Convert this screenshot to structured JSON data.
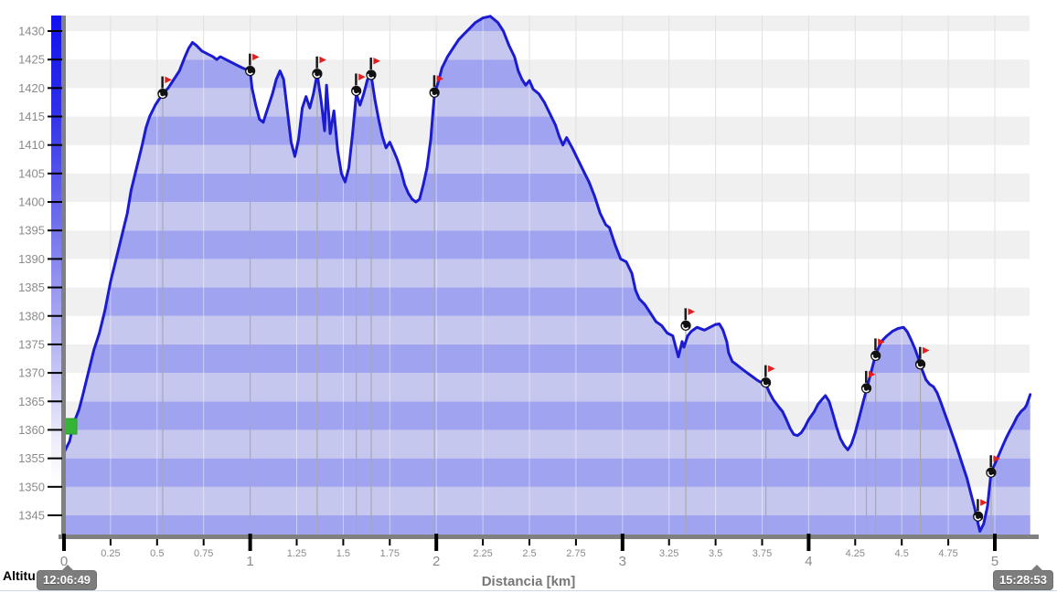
{
  "footer": {
    "y_axis_title": "Altitu",
    "x_axis_title": "Distancia [km]",
    "start_time": "12:06:49",
    "end_time": "15:28:53"
  },
  "axes": {
    "y_ticks": [
      "1430",
      "1425",
      "1420",
      "1415",
      "1410",
      "1405",
      "1400",
      "1395",
      "1390",
      "1385",
      "1380",
      "1375",
      "1370",
      "1365",
      "1360",
      "1355",
      "1350",
      "1345"
    ],
    "x_major_ticks": [
      "0",
      "1",
      "2",
      "3",
      "4",
      "5"
    ],
    "x_minor_ticks": [
      "0.25",
      "0.5",
      "0.75",
      "1.25",
      "1.5",
      "1.75",
      "2.25",
      "2.5",
      "2.75",
      "3.25",
      "3.5",
      "3.75",
      "4.25",
      "4.5",
      "4.75"
    ]
  },
  "colors": {
    "line": "#1b1bd1",
    "fill_light": "#c6c7ef",
    "fill_dark": "#a0a3f0",
    "bg_band_light": "#ffffff",
    "bg_band_dark": "#f0f0f0",
    "gridline": "#e0e0e0",
    "axis_bar": "#808080",
    "tick_label": "#8a8a8a",
    "tick_mark": "#000000",
    "droplink": "#a8a8a8",
    "badge_bg": "#7d7d7d",
    "flag_red": "#e01f1f",
    "flag_pole": "#1a1a1a",
    "marker_black": "#111111",
    "start_green": "#35b535",
    "gradient_top": "#1111ee"
  },
  "chart_data": {
    "type": "area",
    "title": "",
    "xlabel": "Distancia [km]",
    "ylabel": "Altitu",
    "x_range": [
      0,
      5.2
    ],
    "y_range": [
      1341.6,
      1432.7
    ],
    "grid": true,
    "y_tick_step": 5,
    "x_minor_step": 0.25,
    "start_time": "12:06:49",
    "end_time": "15:28:53",
    "series": [
      {
        "name": "altitude-profile",
        "points": [
          [
            0.0,
            1356
          ],
          [
            0.03,
            1358
          ],
          [
            0.05,
            1361
          ],
          [
            0.08,
            1363.5
          ],
          [
            0.1,
            1366
          ],
          [
            0.13,
            1370
          ],
          [
            0.16,
            1374
          ],
          [
            0.19,
            1377
          ],
          [
            0.22,
            1381
          ],
          [
            0.25,
            1386
          ],
          [
            0.28,
            1390
          ],
          [
            0.31,
            1394
          ],
          [
            0.34,
            1398
          ],
          [
            0.36,
            1402
          ],
          [
            0.39,
            1406
          ],
          [
            0.42,
            1410
          ],
          [
            0.44,
            1413
          ],
          [
            0.46,
            1415
          ],
          [
            0.49,
            1417
          ],
          [
            0.53,
            1419
          ],
          [
            0.56,
            1420
          ],
          [
            0.59,
            1421.5
          ],
          [
            0.62,
            1423
          ],
          [
            0.65,
            1425.5
          ],
          [
            0.67,
            1427
          ],
          [
            0.69,
            1428
          ],
          [
            0.71,
            1427.5
          ],
          [
            0.74,
            1426.5
          ],
          [
            0.77,
            1426
          ],
          [
            0.8,
            1425.5
          ],
          [
            0.82,
            1425
          ],
          [
            0.84,
            1425.5
          ],
          [
            0.87,
            1425
          ],
          [
            0.9,
            1424.5
          ],
          [
            0.93,
            1424
          ],
          [
            0.96,
            1423.5
          ],
          [
            1.0,
            1423
          ],
          [
            1.01,
            1420
          ],
          [
            1.03,
            1417
          ],
          [
            1.05,
            1414.5
          ],
          [
            1.07,
            1414
          ],
          [
            1.09,
            1416
          ],
          [
            1.12,
            1419
          ],
          [
            1.14,
            1421.5
          ],
          [
            1.16,
            1423
          ],
          [
            1.18,
            1421.5
          ],
          [
            1.2,
            1416
          ],
          [
            1.22,
            1410.5
          ],
          [
            1.24,
            1408
          ],
          [
            1.26,
            1411
          ],
          [
            1.28,
            1416.5
          ],
          [
            1.3,
            1418.5
          ],
          [
            1.32,
            1416.5
          ],
          [
            1.34,
            1419
          ],
          [
            1.36,
            1422.5
          ],
          [
            1.38,
            1418
          ],
          [
            1.4,
            1412.5
          ],
          [
            1.41,
            1420.5
          ],
          [
            1.43,
            1412
          ],
          [
            1.45,
            1416
          ],
          [
            1.47,
            1409
          ],
          [
            1.49,
            1405
          ],
          [
            1.51,
            1403.5
          ],
          [
            1.53,
            1406
          ],
          [
            1.55,
            1412
          ],
          [
            1.57,
            1419
          ],
          [
            1.59,
            1417
          ],
          [
            1.61,
            1419
          ],
          [
            1.63,
            1421.5
          ],
          [
            1.65,
            1422.3
          ],
          [
            1.67,
            1418
          ],
          [
            1.69,
            1414.5
          ],
          [
            1.71,
            1411.5
          ],
          [
            1.73,
            1409.5
          ],
          [
            1.75,
            1410.5
          ],
          [
            1.77,
            1409
          ],
          [
            1.79,
            1407.5
          ],
          [
            1.81,
            1405.5
          ],
          [
            1.83,
            1403
          ],
          [
            1.85,
            1401.5
          ],
          [
            1.87,
            1400.5
          ],
          [
            1.89,
            1400
          ],
          [
            1.91,
            1400.5
          ],
          [
            1.93,
            1403
          ],
          [
            1.95,
            1406
          ],
          [
            1.97,
            1411
          ],
          [
            1.98,
            1415
          ],
          [
            1.99,
            1419
          ],
          [
            2.01,
            1421
          ],
          [
            2.03,
            1423.5
          ],
          [
            2.06,
            1425.5
          ],
          [
            2.09,
            1427
          ],
          [
            2.12,
            1428.5
          ],
          [
            2.15,
            1429.5
          ],
          [
            2.18,
            1430.5
          ],
          [
            2.21,
            1431.5
          ],
          [
            2.25,
            1432.3
          ],
          [
            2.29,
            1432.6
          ],
          [
            2.33,
            1431.5
          ],
          [
            2.36,
            1430
          ],
          [
            2.39,
            1427.5
          ],
          [
            2.42,
            1425.5
          ],
          [
            2.44,
            1423
          ],
          [
            2.46,
            1421.5
          ],
          [
            2.48,
            1420.5
          ],
          [
            2.5,
            1421.3
          ],
          [
            2.52,
            1419.8
          ],
          [
            2.55,
            1419
          ],
          [
            2.58,
            1417.5
          ],
          [
            2.61,
            1415.5
          ],
          [
            2.64,
            1413.5
          ],
          [
            2.66,
            1411.5
          ],
          [
            2.68,
            1410
          ],
          [
            2.7,
            1411.3
          ],
          [
            2.73,
            1409.5
          ],
          [
            2.76,
            1407.5
          ],
          [
            2.79,
            1405.5
          ],
          [
            2.82,
            1403.5
          ],
          [
            2.85,
            1401
          ],
          [
            2.88,
            1398
          ],
          [
            2.91,
            1396
          ],
          [
            2.93,
            1395.5
          ],
          [
            2.96,
            1392.5
          ],
          [
            2.99,
            1390
          ],
          [
            3.02,
            1389.5
          ],
          [
            3.05,
            1387.5
          ],
          [
            3.07,
            1384.5
          ],
          [
            3.09,
            1383
          ],
          [
            3.12,
            1382
          ],
          [
            3.15,
            1380.5
          ],
          [
            3.18,
            1379
          ],
          [
            3.21,
            1378.3
          ],
          [
            3.24,
            1377
          ],
          [
            3.27,
            1376.5
          ],
          [
            3.3,
            1372.8
          ],
          [
            3.32,
            1375.5
          ],
          [
            3.33,
            1374.5
          ],
          [
            3.35,
            1376.5
          ],
          [
            3.37,
            1377.3
          ],
          [
            3.4,
            1378
          ],
          [
            3.44,
            1377.5
          ],
          [
            3.47,
            1378
          ],
          [
            3.5,
            1378.5
          ],
          [
            3.52,
            1378.6
          ],
          [
            3.54,
            1377.5
          ],
          [
            3.56,
            1375.5
          ],
          [
            3.57,
            1373.5
          ],
          [
            3.59,
            1372
          ],
          [
            3.61,
            1371.5
          ],
          [
            3.63,
            1371
          ],
          [
            3.65,
            1370.5
          ],
          [
            3.67,
            1370
          ],
          [
            3.7,
            1369.3
          ],
          [
            3.72,
            1368.8
          ],
          [
            3.74,
            1368.4
          ],
          [
            3.77,
            1368
          ],
          [
            3.79,
            1366.5
          ],
          [
            3.81,
            1365.3
          ],
          [
            3.84,
            1364
          ],
          [
            3.86,
            1363.2
          ],
          [
            3.88,
            1361.8
          ],
          [
            3.9,
            1360.3
          ],
          [
            3.92,
            1359.2
          ],
          [
            3.94,
            1359
          ],
          [
            3.96,
            1359.5
          ],
          [
            3.98,
            1360.5
          ],
          [
            4.0,
            1361.8
          ],
          [
            4.03,
            1363.2
          ],
          [
            4.05,
            1364.5
          ],
          [
            4.07,
            1365.3
          ],
          [
            4.09,
            1366
          ],
          [
            4.11,
            1365
          ],
          [
            4.13,
            1362.8
          ],
          [
            4.15,
            1360.5
          ],
          [
            4.17,
            1358.5
          ],
          [
            4.19,
            1357.3
          ],
          [
            4.21,
            1356.5
          ],
          [
            4.23,
            1357.5
          ],
          [
            4.25,
            1359.5
          ],
          [
            4.27,
            1362
          ],
          [
            4.29,
            1364.5
          ],
          [
            4.31,
            1367
          ],
          [
            4.33,
            1369.5
          ],
          [
            4.35,
            1372
          ],
          [
            4.37,
            1374
          ],
          [
            4.39,
            1375.5
          ],
          [
            4.42,
            1376.5
          ],
          [
            4.45,
            1377.3
          ],
          [
            4.48,
            1377.8
          ],
          [
            4.51,
            1378
          ],
          [
            4.53,
            1377.2
          ],
          [
            4.55,
            1375.8
          ],
          [
            4.57,
            1374.3
          ],
          [
            4.59,
            1372.5
          ],
          [
            4.61,
            1370.5
          ],
          [
            4.63,
            1368.8
          ],
          [
            4.65,
            1368
          ],
          [
            4.67,
            1367.6
          ],
          [
            4.69,
            1366.5
          ],
          [
            4.71,
            1364.8
          ],
          [
            4.73,
            1363
          ],
          [
            4.75,
            1361.2
          ],
          [
            4.77,
            1359.3
          ],
          [
            4.79,
            1357.5
          ],
          [
            4.81,
            1355.5
          ],
          [
            4.83,
            1353.5
          ],
          [
            4.85,
            1351.5
          ],
          [
            4.87,
            1349
          ],
          [
            4.89,
            1346.5
          ],
          [
            4.91,
            1343.5
          ],
          [
            4.92,
            1342.2
          ],
          [
            4.94,
            1343.5
          ],
          [
            4.96,
            1346.5
          ],
          [
            4.98,
            1352.5
          ],
          [
            5.0,
            1354
          ],
          [
            5.02,
            1355.5
          ],
          [
            5.04,
            1357
          ],
          [
            5.06,
            1358.5
          ],
          [
            5.08,
            1359.8
          ],
          [
            5.1,
            1361
          ],
          [
            5.12,
            1362.3
          ],
          [
            5.14,
            1363.2
          ],
          [
            5.16,
            1363.8
          ],
          [
            5.17,
            1364.3
          ],
          [
            5.18,
            1365.2
          ],
          [
            5.19,
            1366.2
          ]
        ]
      }
    ],
    "waypoints": [
      [
        0.53,
        1419
      ],
      [
        1.0,
        1423
      ],
      [
        1.36,
        1422.5
      ],
      [
        1.57,
        1419.5
      ],
      [
        1.65,
        1422.3
      ],
      [
        1.99,
        1419.2
      ],
      [
        3.34,
        1378.3
      ],
      [
        3.77,
        1368.3
      ],
      [
        4.31,
        1367.3
      ],
      [
        4.36,
        1373
      ],
      [
        4.6,
        1371.5
      ],
      [
        4.91,
        1344.8
      ],
      [
        4.98,
        1352.5
      ]
    ],
    "start_marker": {
      "km": 0.02,
      "alt": 1360.7
    }
  }
}
